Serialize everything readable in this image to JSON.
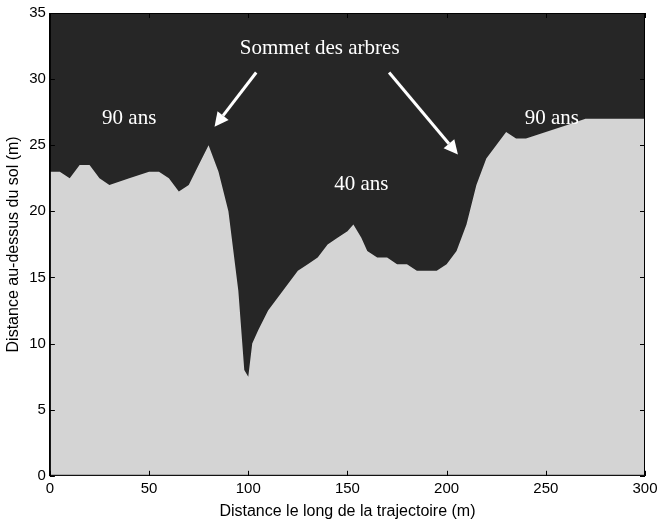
{
  "chart_data": {
    "type": "area",
    "xlabel": "Distance le long de la trajectoire (m)",
    "ylabel": "Distance au-dessus du sol (m)",
    "x": [
      0,
      5,
      10,
      15,
      20,
      25,
      30,
      40,
      50,
      55,
      60,
      65,
      70,
      75,
      80,
      85,
      90,
      95,
      98,
      100,
      102,
      105,
      110,
      115,
      120,
      125,
      130,
      135,
      140,
      145,
      150,
      153,
      157,
      160,
      165,
      170,
      175,
      180,
      185,
      190,
      195,
      200,
      205,
      210,
      215,
      220,
      225,
      230,
      235,
      240,
      250,
      260,
      270,
      280,
      290,
      300
    ],
    "values": [
      23,
      23,
      22.5,
      23.5,
      23.5,
      22.5,
      22,
      22.5,
      23,
      23,
      22.5,
      21.5,
      22,
      23.5,
      25,
      23,
      20,
      14,
      8,
      7.5,
      10,
      11,
      12.5,
      13.5,
      14.5,
      15.5,
      16,
      16.5,
      17.5,
      18,
      18.5,
      19,
      18,
      17,
      16.5,
      16.5,
      16,
      16,
      15.5,
      15.5,
      15.5,
      16,
      17,
      19,
      22,
      24,
      25,
      26,
      25.5,
      25.5,
      26,
      26.5,
      27,
      27,
      27,
      27
    ],
    "color": "#d4d4d4",
    "xlim": [
      0,
      300
    ],
    "xticks": [
      0,
      50,
      100,
      150,
      200,
      250,
      300
    ],
    "ylim": [
      0,
      35
    ],
    "yticks": [
      0,
      5,
      10,
      15,
      20,
      25,
      30,
      35
    ],
    "grid": false,
    "annotations": [
      {
        "text": "90 ans",
        "x": 40,
        "y": 27
      },
      {
        "text": "40 ans",
        "x": 157,
        "y": 22
      },
      {
        "text": "90 ans",
        "x": 253,
        "y": 27
      },
      {
        "text": "Sommet des arbres",
        "x": 136,
        "y": 32.3,
        "arrows": [
          {
            "from": [
              104,
              30.5
            ],
            "to": [
              83,
              26.4
            ]
          },
          {
            "from": [
              171,
              30.5
            ],
            "to": [
              205.7,
              24.3
            ]
          }
        ]
      }
    ]
  }
}
